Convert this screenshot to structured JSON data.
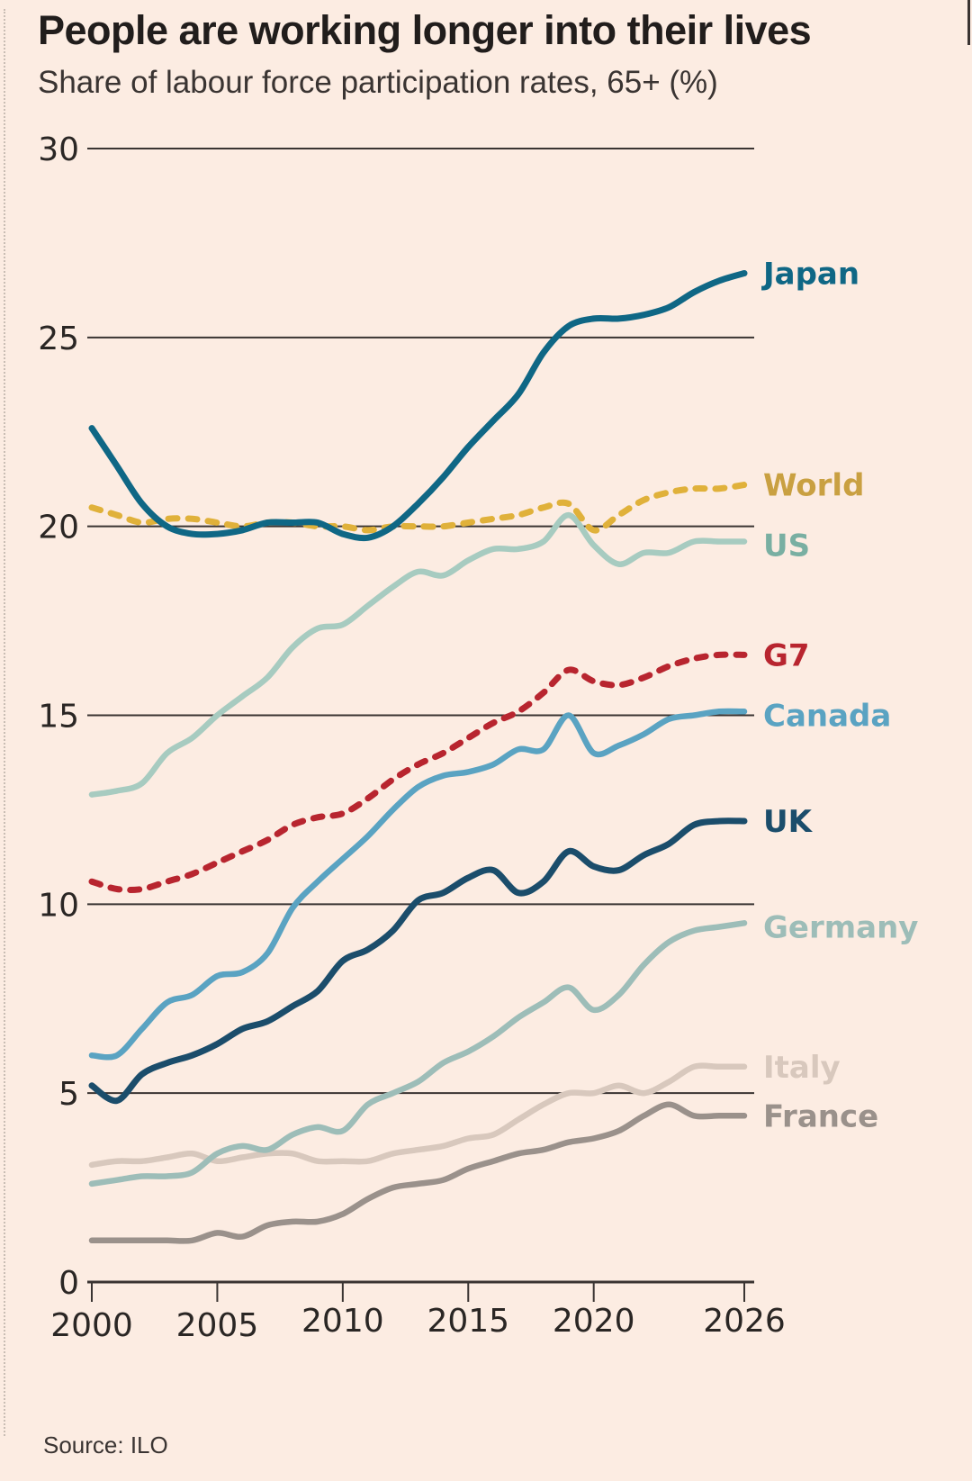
{
  "header": {
    "title": "People are working longer into their lives",
    "subtitle": "Share of labour force participation rates, 65+ (%)"
  },
  "footer": {
    "source": "Source: ILO"
  },
  "chart_data": {
    "type": "line",
    "title": "People are working longer into their lives",
    "subtitle": "Share of labour force participation rates, 65+ (%)",
    "xlabel": "",
    "ylabel": "",
    "xlim": [
      2000,
      2026
    ],
    "ylim": [
      0,
      30
    ],
    "yticks": [
      0,
      5,
      10,
      15,
      20,
      25,
      30
    ],
    "xticks": [
      2000,
      2005,
      2010,
      2015,
      2020,
      2026
    ],
    "grid": "horizontal",
    "legend": "direct-labels-right",
    "source": "Source: ILO",
    "x": [
      2000,
      2001,
      2002,
      2003,
      2004,
      2005,
      2006,
      2007,
      2008,
      2009,
      2010,
      2011,
      2012,
      2013,
      2014,
      2015,
      2016,
      2017,
      2018,
      2019,
      2020,
      2021,
      2022,
      2023,
      2024,
      2025,
      2026
    ],
    "series": [
      {
        "name": "Japan",
        "color": "#0f6785",
        "dashed": false,
        "values": [
          22.6,
          21.6,
          20.6,
          20.0,
          19.8,
          19.8,
          19.9,
          20.1,
          20.1,
          20.1,
          19.8,
          19.7,
          20.0,
          20.6,
          21.3,
          22.1,
          22.8,
          23.5,
          24.6,
          25.3,
          25.5,
          25.5,
          25.6,
          25.8,
          26.2,
          26.5,
          26.7
        ]
      },
      {
        "name": "World",
        "color": "#e0b13a",
        "label_color": "#c9a041",
        "dashed": true,
        "values": [
          20.5,
          20.3,
          20.1,
          20.2,
          20.2,
          20.1,
          20.0,
          20.1,
          20.1,
          20.0,
          20.0,
          19.9,
          20.0,
          20.0,
          20.0,
          20.1,
          20.2,
          20.3,
          20.5,
          20.6,
          19.9,
          20.3,
          20.7,
          20.9,
          21.0,
          21.0,
          21.1
        ]
      },
      {
        "name": "US",
        "color": "#a7cbc0",
        "label_color": "#79afa2",
        "dashed": false,
        "values": [
          12.9,
          13.0,
          13.2,
          14.0,
          14.4,
          15.0,
          15.5,
          16.0,
          16.8,
          17.3,
          17.4,
          17.9,
          18.4,
          18.8,
          18.7,
          19.1,
          19.4,
          19.4,
          19.6,
          20.3,
          19.5,
          19.0,
          19.3,
          19.3,
          19.6,
          19.6,
          19.6
        ]
      },
      {
        "name": "G7",
        "color": "#b8252f",
        "dashed": true,
        "values": [
          10.6,
          10.4,
          10.4,
          10.6,
          10.8,
          11.1,
          11.4,
          11.7,
          12.1,
          12.3,
          12.4,
          12.8,
          13.3,
          13.7,
          14.0,
          14.4,
          14.8,
          15.1,
          15.6,
          16.2,
          15.9,
          15.8,
          16.0,
          16.3,
          16.5,
          16.6,
          16.6
        ]
      },
      {
        "name": "Canada",
        "color": "#5aa3c2",
        "dashed": false,
        "values": [
          6.0,
          6.0,
          6.7,
          7.4,
          7.6,
          8.1,
          8.2,
          8.7,
          9.9,
          10.6,
          11.2,
          11.8,
          12.5,
          13.1,
          13.4,
          13.5,
          13.7,
          14.1,
          14.1,
          15.0,
          14.0,
          14.2,
          14.5,
          14.9,
          15.0,
          15.1,
          15.1
        ]
      },
      {
        "name": "UK",
        "color": "#1b4d6b",
        "dashed": false,
        "values": [
          5.2,
          4.8,
          5.5,
          5.8,
          6.0,
          6.3,
          6.7,
          6.9,
          7.3,
          7.7,
          8.5,
          8.8,
          9.3,
          10.1,
          10.3,
          10.7,
          10.9,
          10.3,
          10.6,
          11.4,
          11.0,
          10.9,
          11.3,
          11.6,
          12.1,
          12.2,
          12.2
        ]
      },
      {
        "name": "Germany",
        "color": "#9dbdb8",
        "dashed": false,
        "values": [
          2.6,
          2.7,
          2.8,
          2.8,
          2.9,
          3.4,
          3.6,
          3.5,
          3.9,
          4.1,
          4.0,
          4.7,
          5.0,
          5.3,
          5.8,
          6.1,
          6.5,
          7.0,
          7.4,
          7.8,
          7.2,
          7.6,
          8.4,
          9.0,
          9.3,
          9.4,
          9.5
        ]
      },
      {
        "name": "Italy",
        "color": "#d8c8bd",
        "dashed": false,
        "values": [
          3.1,
          3.2,
          3.2,
          3.3,
          3.4,
          3.2,
          3.3,
          3.4,
          3.4,
          3.2,
          3.2,
          3.2,
          3.4,
          3.5,
          3.6,
          3.8,
          3.9,
          4.3,
          4.7,
          5.0,
          5.0,
          5.2,
          5.0,
          5.3,
          5.7,
          5.7,
          5.7
        ]
      },
      {
        "name": "France",
        "color": "#9a918b",
        "dashed": false,
        "values": [
          1.1,
          1.1,
          1.1,
          1.1,
          1.1,
          1.3,
          1.2,
          1.5,
          1.6,
          1.6,
          1.8,
          2.2,
          2.5,
          2.6,
          2.7,
          3.0,
          3.2,
          3.4,
          3.5,
          3.7,
          3.8,
          4.0,
          4.4,
          4.7,
          4.4,
          4.4,
          4.4
        ]
      }
    ],
    "label_y_values": {
      "Japan": 26.7,
      "World": 21.1,
      "US": 19.5,
      "G7": 16.6,
      "Canada": 15.0,
      "UK": 12.2,
      "Germany": 9.4,
      "Italy": 5.7,
      "France": 4.4
    }
  }
}
